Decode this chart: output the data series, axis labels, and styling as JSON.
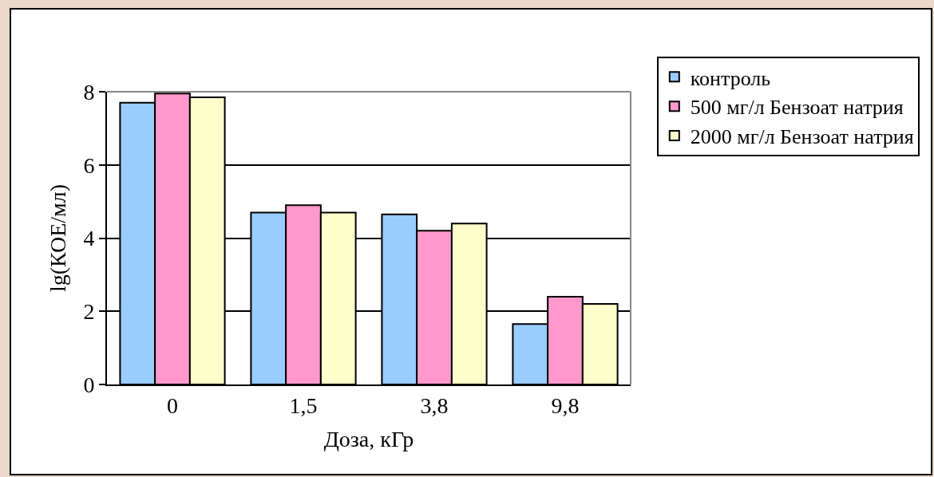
{
  "chart_data": {
    "type": "bar",
    "xlabel": "Доза, кГр",
    "ylabel": "lg(КОЕ/мл)",
    "categories": [
      "0",
      "1,5",
      "3,8",
      "9,8"
    ],
    "series": [
      {
        "name": "контроль",
        "color": "#99ccff",
        "values": [
          7.7,
          4.7,
          4.65,
          1.65
        ]
      },
      {
        "name": "500 мг/л Бензоат натрия",
        "color": "#ff99cc",
        "values": [
          7.95,
          4.9,
          4.2,
          2.4
        ]
      },
      {
        "name": "2000 мг/л Бензоат натрия",
        "color": "#ffffcc",
        "values": [
          7.85,
          4.7,
          4.4,
          2.2
        ]
      }
    ],
    "ylim": [
      0,
      8
    ],
    "yticks": [
      0,
      2,
      4,
      6,
      8
    ],
    "grid": "y",
    "legend": "right"
  }
}
